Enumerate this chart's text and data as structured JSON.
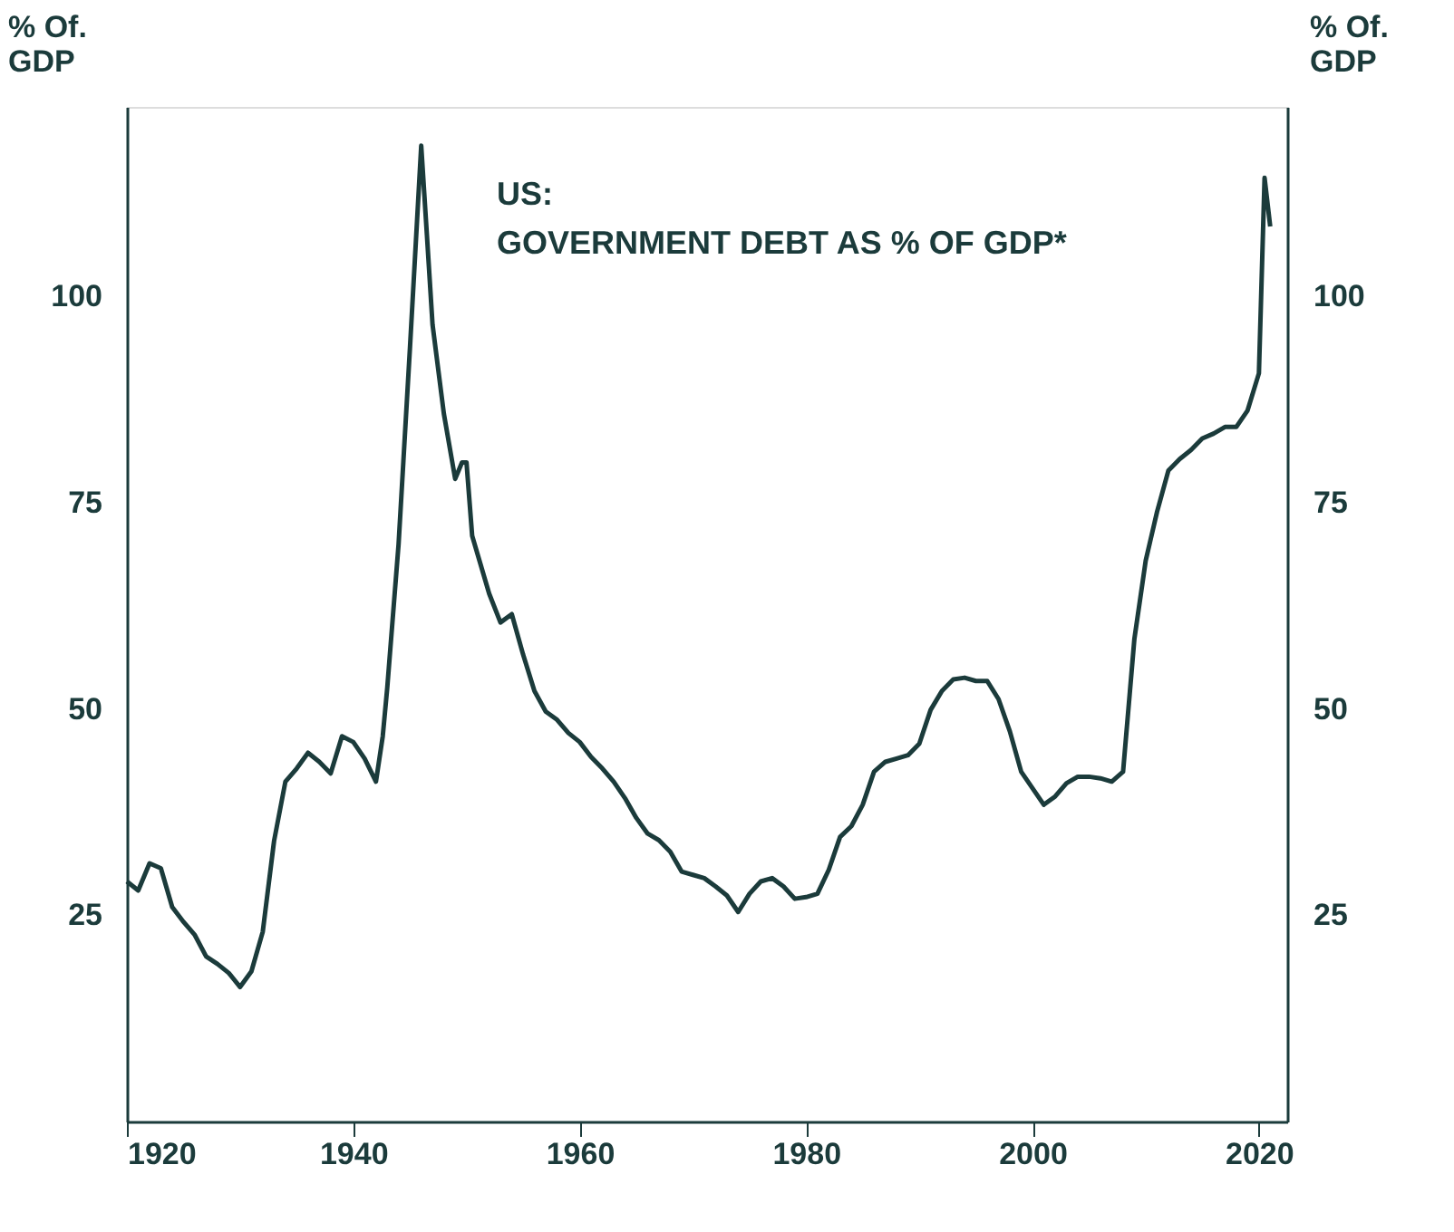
{
  "chart_data": {
    "type": "line",
    "title": "US:\nGOVERNMENT DEBT AS % OF GDP*",
    "ylabel": "% Of.\nGDP",
    "y2label": "% Of.\nGDP",
    "x": [
      1920,
      1921,
      1922,
      1923,
      1924,
      1925,
      1926,
      1927,
      1928,
      1929,
      1930,
      1931,
      1932,
      1933,
      1934,
      1935,
      1936,
      1937,
      1938,
      1939,
      1940,
      1941,
      1942,
      1942.6,
      1943,
      1944,
      1945,
      1946,
      1946.5,
      1947,
      1948,
      1949,
      1949.6,
      1950,
      1950.5,
      1952,
      1953,
      1954,
      1955,
      1956,
      1957,
      1958,
      1959,
      1960,
      1961,
      1962,
      1963,
      1964,
      1965,
      1966,
      1967,
      1968,
      1969,
      1970,
      1971,
      1972,
      1973,
      1974,
      1975,
      1976,
      1977,
      1978,
      1979,
      1980,
      1981,
      1982,
      1983,
      1984,
      1985,
      1986,
      1987,
      1988,
      1989,
      1990,
      1991,
      1992,
      1993,
      1994,
      1995,
      1996,
      1997,
      1998,
      1999,
      2000,
      2001,
      2002,
      2003,
      2004,
      2005,
      2006,
      2007,
      2008,
      2009,
      2010,
      2011,
      2012,
      2013,
      2014,
      2015,
      2016,
      2017,
      2018,
      2019,
      2020,
      2020.5,
      2021
    ],
    "series": [
      {
        "color": "#1b3b3b",
        "values": [
          29.1,
          28,
          31.3,
          30.7,
          26,
          24.2,
          22.6,
          20,
          19.1,
          18,
          16.3,
          18.2,
          23,
          34,
          41.2,
          42.8,
          44.7,
          43.6,
          42.2,
          46.7,
          46,
          44,
          41.2,
          46.7,
          52.6,
          70,
          93.7,
          118.3,
          107.5,
          96.6,
          85.8,
          77.9,
          79.9,
          79.9,
          71,
          64,
          60.5,
          61.5,
          56.6,
          52.2,
          49.7,
          48.7,
          47.1,
          46,
          44.2,
          42.8,
          41.2,
          39.2,
          36.8,
          34.9,
          34.1,
          32.7,
          30.3,
          29.9,
          29.5,
          28.5,
          27.4,
          25.4,
          27.6,
          29.1,
          29.5,
          28.5,
          27,
          27.2,
          27.6,
          30.5,
          34.5,
          35.8,
          38.4,
          42.4,
          43.6,
          44,
          44.4,
          45.8,
          49.9,
          52.2,
          53.6,
          53.8,
          53.4,
          53.4,
          51.2,
          47.3,
          42.4,
          40.4,
          38.4,
          39.4,
          41,
          41.8,
          41.8,
          41.6,
          41.2,
          42.4,
          58.5,
          68,
          73.9,
          78.9,
          80.3,
          81.4,
          82.8,
          83.4,
          84.2,
          84.2,
          86.2,
          90.7,
          114.4,
          108.5
        ]
      }
    ],
    "xlim": [
      1920,
      2022.5
    ],
    "xticks": [
      1920,
      1940,
      1960,
      1980,
      2000,
      2020
    ],
    "ylim": [
      0,
      123
    ],
    "yticks": [
      25,
      50,
      75,
      100
    ],
    "y2lim": [
      0,
      123
    ],
    "y2ticks": [
      25,
      50,
      75,
      100
    ],
    "grid": false,
    "legend": false,
    "line_style": "solid",
    "marker": "none"
  }
}
